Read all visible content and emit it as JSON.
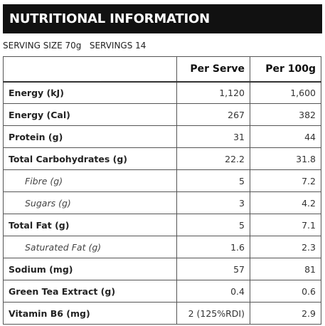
{
  "title": "NUTRITIONAL INFORMATION",
  "serving_info": "SERVING SIZE 70g   SERVINGS 14",
  "columns": [
    "",
    "Per Serve",
    "Per 100g"
  ],
  "rows": [
    {
      "label": "Energy (kJ)",
      "per_serve": "1,120",
      "per_100g": "1,600",
      "sub": false
    },
    {
      "label": "Energy (Cal)",
      "per_serve": "267",
      "per_100g": "382",
      "sub": false
    },
    {
      "label": "Protein (g)",
      "per_serve": "31",
      "per_100g": "44",
      "sub": false
    },
    {
      "label": "Total Carbohydrates (g)",
      "per_serve": "22.2",
      "per_100g": "31.8",
      "sub": false
    },
    {
      "label": "Fibre (g)",
      "per_serve": "5",
      "per_100g": "7.2",
      "sub": true
    },
    {
      "label": "Sugars (g)",
      "per_serve": "3",
      "per_100g": "4.2",
      "sub": true
    },
    {
      "label": "Total Fat (g)",
      "per_serve": "5",
      "per_100g": "7.1",
      "sub": false
    },
    {
      "label": "Saturated Fat (g)",
      "per_serve": "1.6",
      "per_100g": "2.3",
      "sub": true
    },
    {
      "label": "Sodium (mg)",
      "per_serve": "57",
      "per_100g": "81",
      "sub": false
    },
    {
      "label": "Green Tea Extract (g)",
      "per_serve": "0.4",
      "per_100g": "0.6",
      "sub": false
    },
    {
      "label": "Vitamin B6 (mg)",
      "per_serve": "2 (125%RDI)",
      "per_100g": "2.9",
      "sub": false
    }
  ]
}
